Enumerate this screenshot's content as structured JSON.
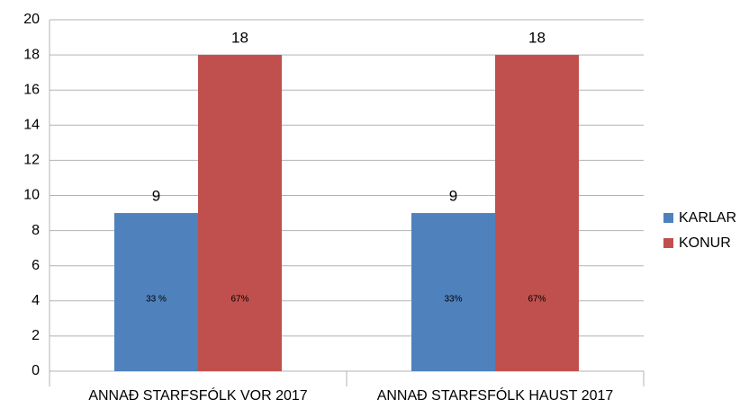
{
  "chart_data": {
    "type": "bar",
    "categories": [
      "ANNAÐ STARFSFÓLK VOR 2017",
      "ANNAÐ STARFSFÓLK HAUST 2017"
    ],
    "series": [
      {
        "name": "KARLAR",
        "color": "#4f81bd",
        "values": [
          9,
          9
        ],
        "shares": [
          {
            "value": 33,
            "label": "33 %"
          },
          {
            "value": 33,
            "label": "33%"
          }
        ]
      },
      {
        "name": "KONUR",
        "color": "#c0504d",
        "values": [
          18,
          18
        ],
        "shares": [
          {
            "value": 67,
            "label": "67%"
          },
          {
            "value": 67,
            "label": "67%"
          }
        ]
      }
    ],
    "ylim": [
      0,
      20
    ],
    "yticks": [
      0,
      2,
      4,
      6,
      8,
      10,
      12,
      14,
      16,
      18,
      20
    ],
    "grid": true,
    "legend": "right"
  }
}
